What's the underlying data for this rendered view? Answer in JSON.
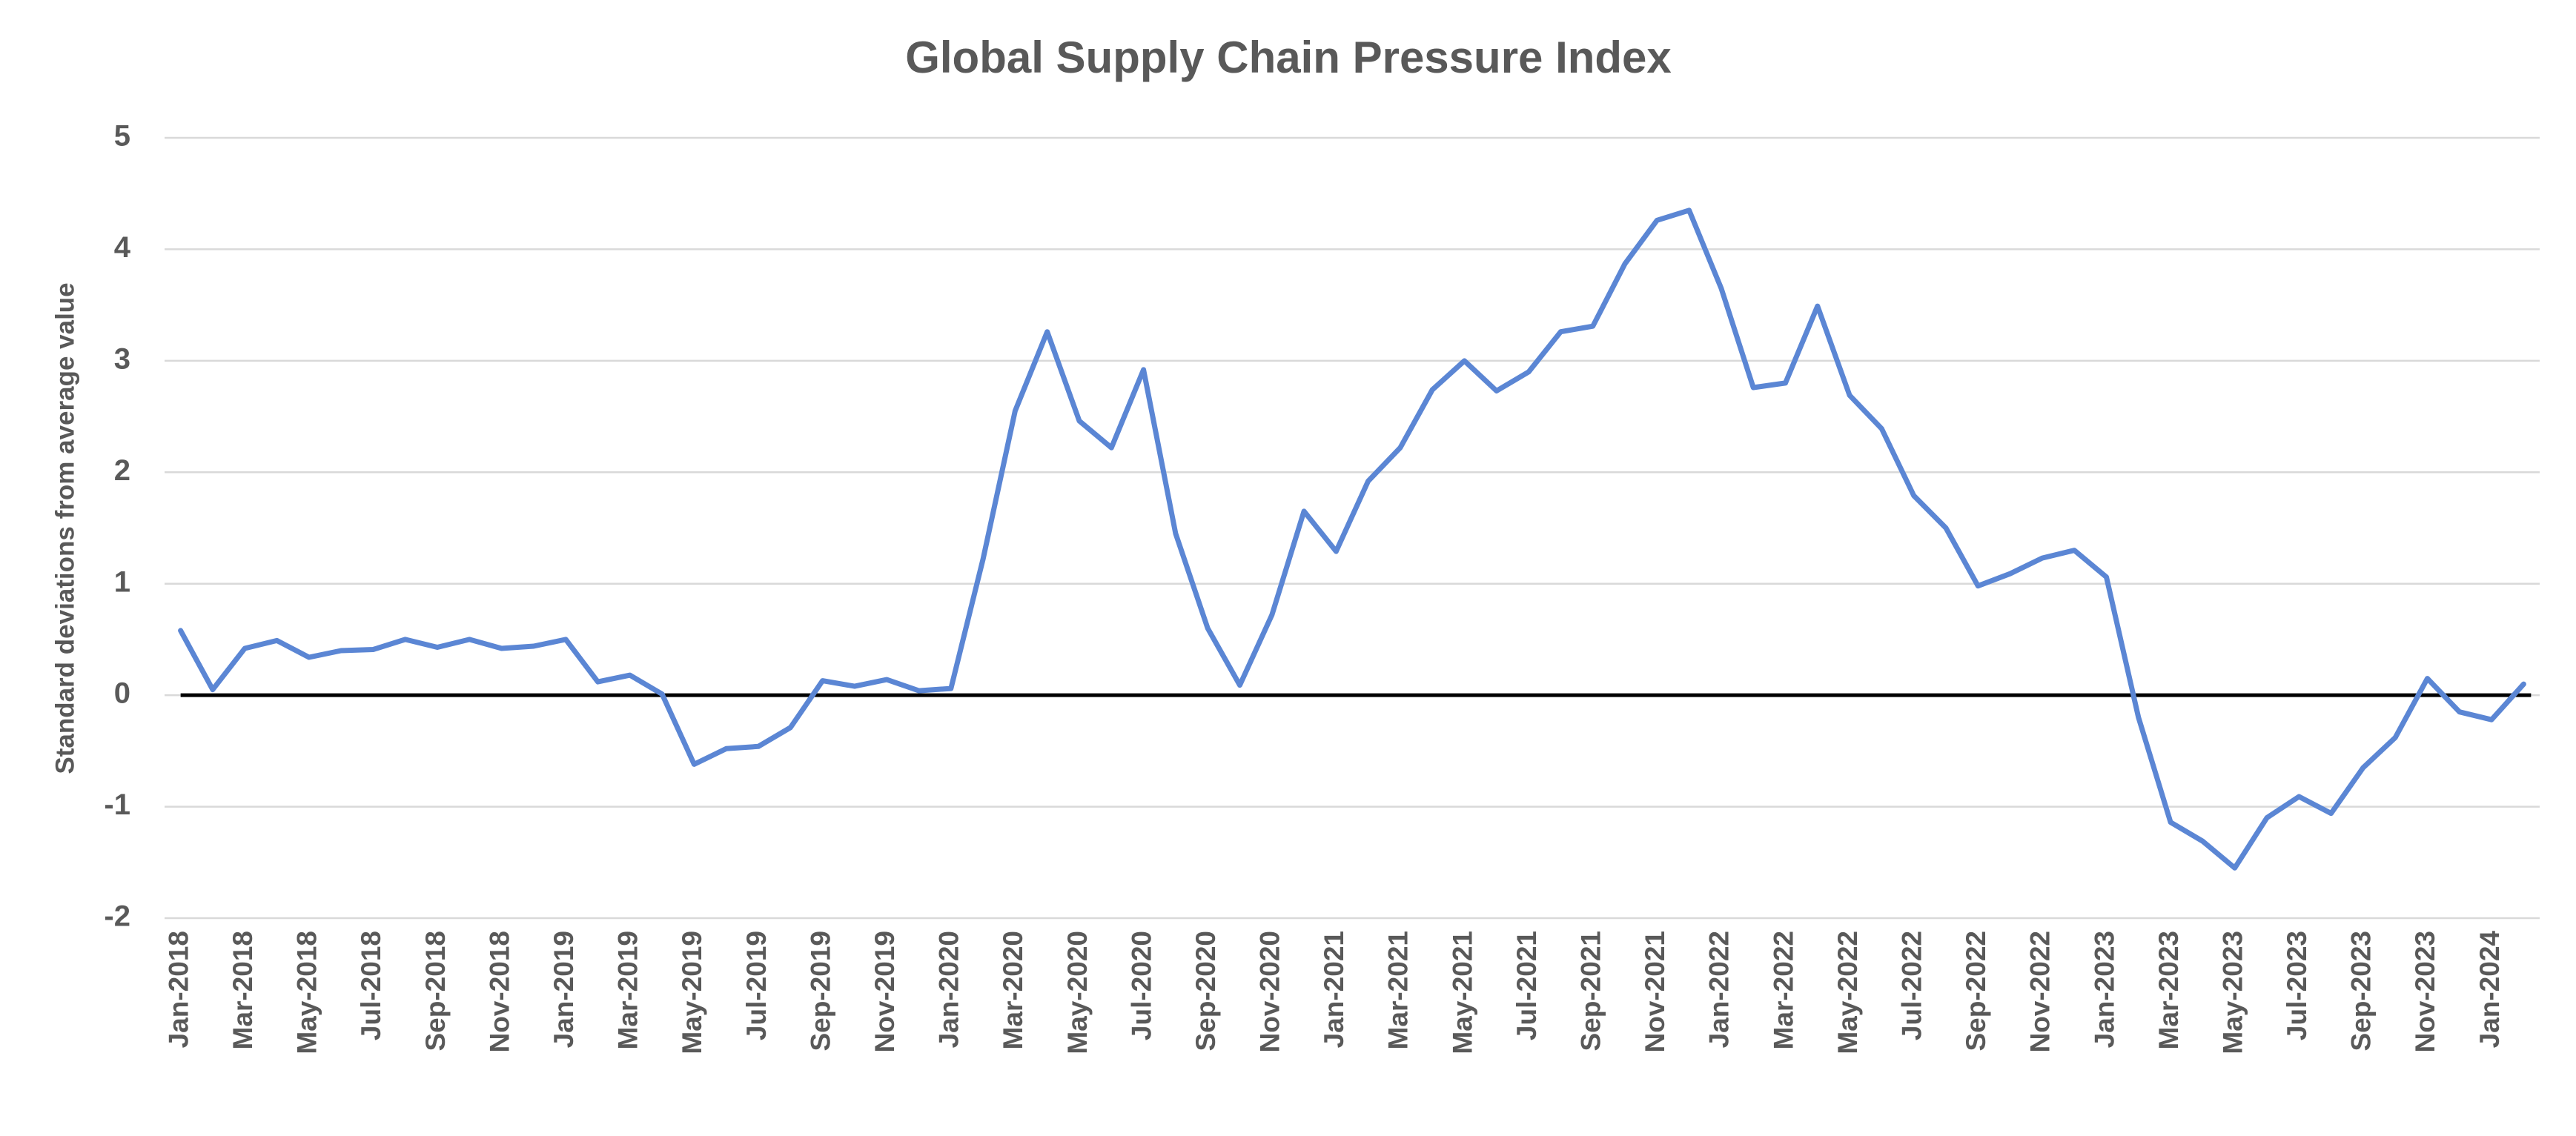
{
  "chart_data": {
    "type": "line",
    "title": "Global Supply Chain Pressure Index",
    "y_label": "Standard deviations from average value",
    "categories": [
      "Jan-2018",
      null,
      "Mar-2018",
      null,
      "May-2018",
      null,
      "Jul-2018",
      null,
      "Sep-2018",
      null,
      "Nov-2018",
      null,
      "Jan-2019",
      null,
      "Mar-2019",
      null,
      "May-2019",
      null,
      "Jul-2019",
      null,
      "Sep-2019",
      null,
      "Nov-2019",
      null,
      "Jan-2020",
      null,
      "Mar-2020",
      null,
      "May-2020",
      null,
      "Jul-2020",
      null,
      "Sep-2020",
      null,
      "Nov-2020",
      null,
      "Jan-2021",
      null,
      "Mar-2021",
      null,
      "May-2021",
      null,
      "Jul-2021",
      null,
      "Sep-2021",
      null,
      "Nov-2021",
      null,
      "Jan-2022",
      null,
      "Mar-2022",
      null,
      "May-2022",
      null,
      "Jul-2022",
      null,
      "Sep-2022",
      null,
      "Nov-2022",
      null,
      "Jan-2023",
      null,
      "Mar-2023",
      null,
      "May-2023",
      null,
      "Jul-2023",
      null,
      "Sep-2023",
      null,
      "Nov-2023",
      null,
      "Jan-2024",
      null
    ],
    "values": [
      0.58,
      0.05,
      0.42,
      0.49,
      0.34,
      0.4,
      0.41,
      0.5,
      0.43,
      0.5,
      0.42,
      0.44,
      0.5,
      0.12,
      0.18,
      0.01,
      -0.62,
      -0.48,
      -0.46,
      -0.29,
      0.13,
      0.08,
      0.14,
      0.04,
      0.06,
      1.22,
      2.55,
      3.26,
      2.46,
      2.22,
      2.92,
      1.45,
      0.6,
      0.09,
      0.72,
      1.65,
      1.29,
      1.92,
      2.22,
      2.74,
      3.0,
      2.73,
      2.9,
      3.26,
      3.31,
      3.87,
      4.26,
      4.35,
      3.65,
      2.76,
      2.8,
      3.49,
      2.69,
      2.39,
      1.79,
      1.5,
      0.98,
      1.09,
      1.23,
      1.3,
      1.06,
      -0.2,
      -1.14,
      -1.31,
      -1.55,
      -1.1,
      -0.91,
      -1.06,
      -0.65,
      -0.38,
      0.15,
      -0.15,
      -0.22,
      0.1
    ],
    "color": "#5b86d4",
    "ylim": [
      -2,
      5
    ],
    "yticks": [
      -2,
      -1,
      0,
      1,
      2,
      3,
      4,
      5
    ],
    "grid": true
  }
}
